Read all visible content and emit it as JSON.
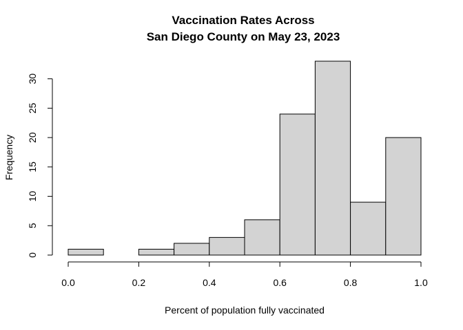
{
  "chart_data": {
    "type": "bar",
    "title_lines": [
      "Vaccination Rates Across",
      "San Diego County on May 23, 2023"
    ],
    "xlabel": "Percent of population fully vaccinated",
    "ylabel": "Frequency",
    "bins": [
      {
        "start": 0.0,
        "end": 0.1,
        "count": 1
      },
      {
        "start": 0.1,
        "end": 0.2,
        "count": 0
      },
      {
        "start": 0.2,
        "end": 0.3,
        "count": 1
      },
      {
        "start": 0.3,
        "end": 0.4,
        "count": 2
      },
      {
        "start": 0.4,
        "end": 0.5,
        "count": 3
      },
      {
        "start": 0.5,
        "end": 0.6,
        "count": 6
      },
      {
        "start": 0.6,
        "end": 0.7,
        "count": 24
      },
      {
        "start": 0.7,
        "end": 0.8,
        "count": 33
      },
      {
        "start": 0.8,
        "end": 0.9,
        "count": 9
      },
      {
        "start": 0.9,
        "end": 1.0,
        "count": 20
      }
    ],
    "x_ticks": [
      "0.0",
      "0.2",
      "0.4",
      "0.6",
      "0.8",
      "1.0"
    ],
    "x_tick_values": [
      0.0,
      0.2,
      0.4,
      0.6,
      0.8,
      1.0
    ],
    "y_ticks": [
      "0",
      "5",
      "10",
      "15",
      "20",
      "25",
      "30"
    ],
    "y_tick_values": [
      0,
      5,
      10,
      15,
      20,
      25,
      30
    ],
    "xlim": [
      0.0,
      1.0
    ],
    "ylim": [
      0,
      33
    ],
    "grid": false,
    "bar_fill": "#d3d3d3",
    "bar_stroke": "#000000"
  }
}
